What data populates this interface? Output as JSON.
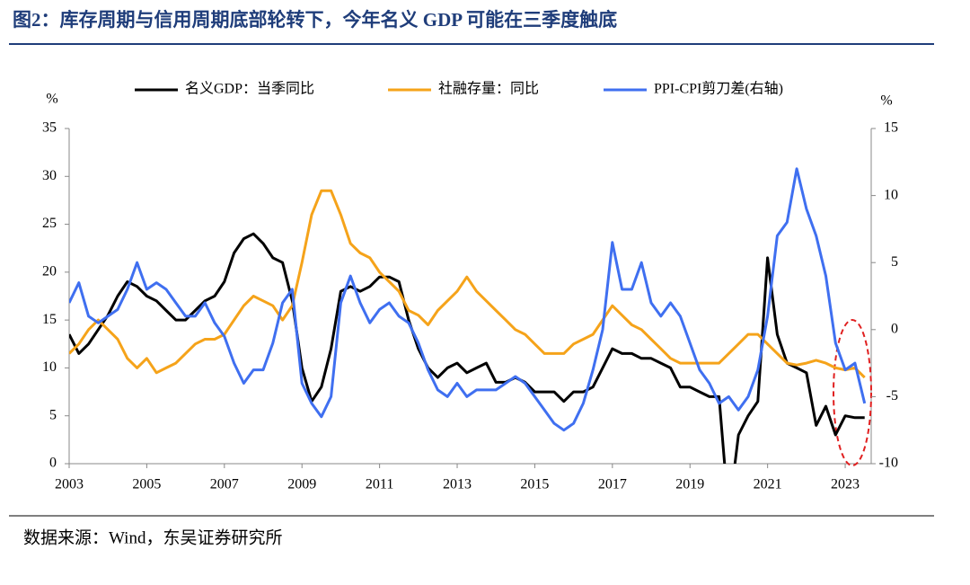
{
  "title": "图2：库存周期与信用周期底部轮转下，今年名义 GDP 可能在三季度触底",
  "source": "数据来源：Wind，东吴证券研究所",
  "chart_data": {
    "type": "line",
    "ylabel": "%",
    "y2label": "%",
    "x": [
      2003,
      2003.25,
      2003.5,
      2003.75,
      2004,
      2004.25,
      2004.5,
      2004.75,
      2005,
      2005.25,
      2005.5,
      2005.75,
      2006,
      2006.25,
      2006.5,
      2006.75,
      2007,
      2007.25,
      2007.5,
      2007.75,
      2008,
      2008.25,
      2008.5,
      2008.75,
      2009,
      2009.25,
      2009.5,
      2009.75,
      2010,
      2010.25,
      2010.5,
      2010.75,
      2011,
      2011.25,
      2011.5,
      2011.75,
      2012,
      2012.25,
      2012.5,
      2012.75,
      2013,
      2013.25,
      2013.5,
      2013.75,
      2014,
      2014.25,
      2014.5,
      2014.75,
      2015,
      2015.25,
      2015.5,
      2015.75,
      2016,
      2016.25,
      2016.5,
      2016.75,
      2017,
      2017.25,
      2017.5,
      2017.75,
      2018,
      2018.25,
      2018.5,
      2018.75,
      2019,
      2019.25,
      2019.5,
      2019.75,
      2020,
      2020.25,
      2020.5,
      2020.75,
      2021,
      2021.25,
      2021.5,
      2021.75,
      2022,
      2022.25,
      2022.5,
      2022.75,
      2023,
      2023.25,
      2023.5
    ],
    "series": [
      {
        "name": "名义GDP：当季同比",
        "color": "#000000",
        "axis": "y",
        "values": [
          13.5,
          11.5,
          12.5,
          14,
          15.5,
          17.5,
          19,
          18.5,
          17.5,
          17,
          16,
          15,
          15,
          16,
          17,
          17.5,
          19,
          22,
          23.5,
          24,
          23,
          21.5,
          21,
          17,
          10,
          6.5,
          8,
          12,
          18,
          18.5,
          18,
          18.5,
          19.5,
          19.5,
          19,
          15,
          12,
          10,
          9,
          10,
          10.5,
          9.5,
          10,
          10.5,
          8.5,
          8.5,
          9,
          8.5,
          7.5,
          7.5,
          7.5,
          6.5,
          7.5,
          7.5,
          8,
          10,
          12,
          11.5,
          11.5,
          11,
          11,
          10.5,
          10,
          8,
          8,
          7.5,
          7,
          7,
          -5.3,
          3,
          5,
          6.5,
          21.5,
          13.5,
          10.5,
          10,
          9.5,
          4,
          6,
          3,
          5,
          4.8,
          4.8
        ]
      },
      {
        "name": "社融存量：同比",
        "color": "#f5a31a",
        "axis": "y",
        "values": [
          11.5,
          12.5,
          14,
          15,
          14,
          13,
          11,
          10,
          11,
          9.5,
          10,
          10.5,
          11.5,
          12.5,
          13,
          13,
          13.5,
          15,
          16.5,
          17.5,
          17,
          16.5,
          15,
          16.5,
          21,
          26,
          28.5,
          28.5,
          26,
          23,
          22,
          21.5,
          20,
          19,
          18,
          16,
          15.5,
          14.5,
          16,
          17,
          18,
          19.5,
          18,
          17,
          16,
          15,
          14,
          13.5,
          12.5,
          11.5,
          11.5,
          11.5,
          12.5,
          13,
          13.5,
          15,
          16.5,
          15.5,
          14.5,
          14,
          13,
          12,
          11,
          10.5,
          10.5,
          10.5,
          10.5,
          10.5,
          11.5,
          12.5,
          13.5,
          13.5,
          12.5,
          11.5,
          10.5,
          10.3,
          10.5,
          10.8,
          10.5,
          10,
          9.8,
          10,
          9
        ]
      },
      {
        "name": "PPI-CPI剪刀差(右轴)",
        "color": "#3f6ff0",
        "axis": "y2",
        "values": [
          2,
          3.5,
          1,
          0.5,
          1,
          1.5,
          3,
          5,
          3,
          3.5,
          3,
          2,
          1,
          1,
          2,
          0.5,
          -0.5,
          -2.5,
          -4,
          -3,
          -3,
          -1,
          2,
          3,
          -4,
          -5.5,
          -6.5,
          -5,
          2,
          4,
          2,
          0.5,
          1.5,
          2,
          1,
          0.5,
          -1,
          -3,
          -4.5,
          -5,
          -4,
          -5,
          -4.5,
          -4.5,
          -4.5,
          -4,
          -3.5,
          -4,
          -5,
          -6,
          -7,
          -7.5,
          -7,
          -5.5,
          -3,
          0,
          6.5,
          3,
          3,
          5,
          2,
          1,
          2,
          1,
          -1,
          -3,
          -4,
          -5.5,
          -5,
          -6,
          -5,
          -3,
          1,
          7,
          8,
          12,
          9,
          7,
          4,
          -1,
          -3,
          -2.5,
          -5.5
        ]
      }
    ],
    "xlim": [
      2003,
      2023.67
    ],
    "xticks": [
      2003,
      2005,
      2007,
      2009,
      2011,
      2013,
      2015,
      2017,
      2019,
      2021,
      2023
    ],
    "ylim": [
      0,
      35
    ],
    "yticks": [
      0,
      5,
      10,
      15,
      20,
      25,
      30,
      35
    ],
    "y2lim": [
      -10,
      15
    ],
    "y2ticks": [
      -10,
      -5,
      0,
      5,
      10,
      15
    ],
    "grid": false
  }
}
